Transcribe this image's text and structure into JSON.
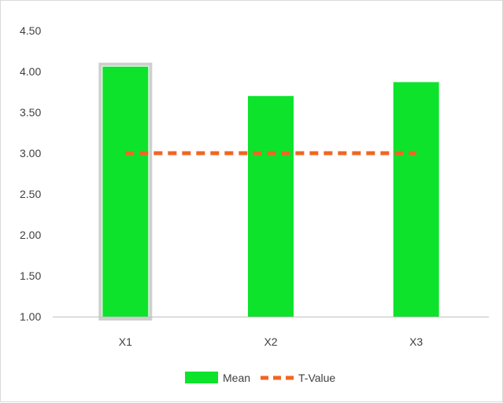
{
  "chart_data": {
    "type": "bar",
    "categories": [
      "X1",
      "X2",
      "X3"
    ],
    "series": [
      {
        "name": "Mean",
        "kind": "bar",
        "color": "#0de32b",
        "values": [
          4.06,
          3.7,
          3.87
        ]
      },
      {
        "name": "T-Value",
        "kind": "line",
        "style": "dashed",
        "color": "#f26522",
        "values": [
          3.0,
          3.0,
          3.0
        ]
      }
    ],
    "ylim": [
      1.0,
      4.5
    ],
    "yticks": [
      "1.00",
      "1.50",
      "2.00",
      "2.50",
      "3.00",
      "3.50",
      "4.00",
      "4.50"
    ],
    "xlabel": "",
    "ylabel": "",
    "title": "",
    "grid": false,
    "legend": "bottom",
    "selected_category": "X1"
  }
}
